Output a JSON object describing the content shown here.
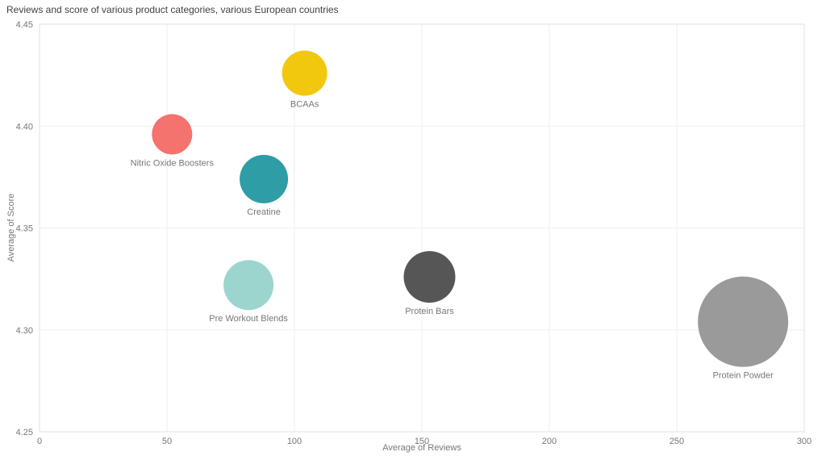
{
  "chart_data": {
    "type": "scatter",
    "variant": "bubble",
    "title": "Reviews and score of various product categories, various European countries",
    "xlabel": "Average of Reviews",
    "ylabel": "Average of Score",
    "xlim": [
      0,
      300
    ],
    "ylim": [
      4.25,
      4.45
    ],
    "x_ticks": [
      0,
      50,
      100,
      150,
      200,
      250,
      300
    ],
    "x_tick_labels": [
      "0",
      "50",
      "100",
      "150",
      "200",
      "250",
      "300"
    ],
    "y_ticks": [
      4.25,
      4.3,
      4.35,
      4.4,
      4.45
    ],
    "y_tick_labels": [
      "4.25",
      "4.30",
      "4.35",
      "4.40",
      "4.45"
    ],
    "grid": true,
    "legend_position": "none",
    "points": [
      {
        "category": "BCAAs",
        "x": 104,
        "y": 4.426,
        "radius_px": 28,
        "color": "#F2C80F"
      },
      {
        "category": "Nitric Oxide Boosters",
        "x": 52,
        "y": 4.396,
        "radius_px": 25,
        "color": "#F4736E"
      },
      {
        "category": "Creatine",
        "x": 88,
        "y": 4.374,
        "radius_px": 30,
        "color": "#2E9DA6"
      },
      {
        "category": "Pre Workout Blends",
        "x": 82,
        "y": 4.322,
        "radius_px": 31,
        "color": "#9CD5CE"
      },
      {
        "category": "Protein Bars",
        "x": 153,
        "y": 4.326,
        "radius_px": 32,
        "color": "#565656"
      },
      {
        "category": "Protein Powder",
        "x": 276,
        "y": 4.304,
        "radius_px": 56,
        "color": "#9A9A9A"
      }
    ]
  },
  "colors": {
    "background": "#FFFFFF",
    "gridline": "#EFEFEF",
    "plot_border": "#E2E2E2",
    "axis_text": "#777777",
    "bubble_label_text": "#777777",
    "title_text": "#414141"
  }
}
